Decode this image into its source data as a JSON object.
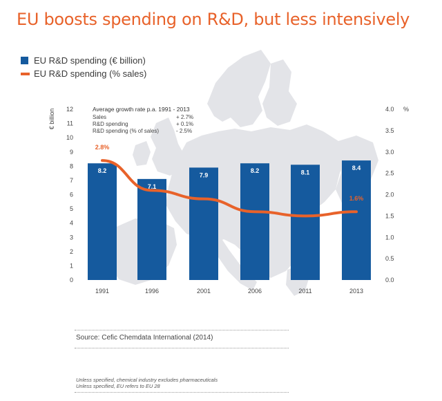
{
  "title": "EU boosts spending on R&D, but less intensively",
  "legend": {
    "bar_label": "EU R&D spending (€ billion)",
    "line_label": "EU R&D spending (% sales)"
  },
  "colors": {
    "bar": "#155a9e",
    "line": "#e8622a",
    "map": "#e3e4e8"
  },
  "growth_box": {
    "heading": "Average  growth rate p.a. 1991 - 2013",
    "rows": [
      {
        "label": "Sales",
        "value": "+ 2.7%"
      },
      {
        "label": "R&D spending",
        "value": "+ 0.1%"
      },
      {
        "label": "R&D spending (% of sales)",
        "value": "- 2.5%"
      }
    ]
  },
  "chart_data": {
    "type": "bar",
    "categories": [
      "1991",
      "1996",
      "2001",
      "2006",
      "2011",
      "2013"
    ],
    "series": [
      {
        "name": "EU R&D spending (€ billion)",
        "type": "bar",
        "axis": "left",
        "values": [
          8.2,
          7.1,
          7.9,
          8.2,
          8.1,
          8.4
        ],
        "data_labels": [
          "8.2",
          "7.1",
          "7.9",
          "8.2",
          "8.1",
          "8.4"
        ]
      },
      {
        "name": "EU R&D spending (% sales)",
        "type": "line",
        "axis": "right",
        "values": [
          2.8,
          2.1,
          1.9,
          1.6,
          1.5,
          1.6
        ],
        "data_labels": [
          "2.8%",
          "",
          "",
          "",
          "",
          "1.6%"
        ]
      }
    ],
    "ylabel": "€ billion",
    "ylim": [
      0,
      12
    ],
    "yticks": [
      "0",
      "1",
      "2",
      "3",
      "4",
      "5",
      "6",
      "7",
      "8",
      "9",
      "10",
      "11",
      "12"
    ],
    "y2label": "%",
    "y2lim": [
      0,
      4
    ],
    "y2ticks": [
      "0.0",
      "0.5",
      "1.0",
      "1.5",
      "2.0",
      "2.5",
      "3.0",
      "3.5",
      "4.0"
    ],
    "legend_position": "top-left"
  },
  "source": "Source: Cefic Chemdata International (2014)",
  "notes": [
    "Unless specified, chemical industry excludes pharmaceuticals",
    "Unless specified, EU refers to EU 28"
  ]
}
